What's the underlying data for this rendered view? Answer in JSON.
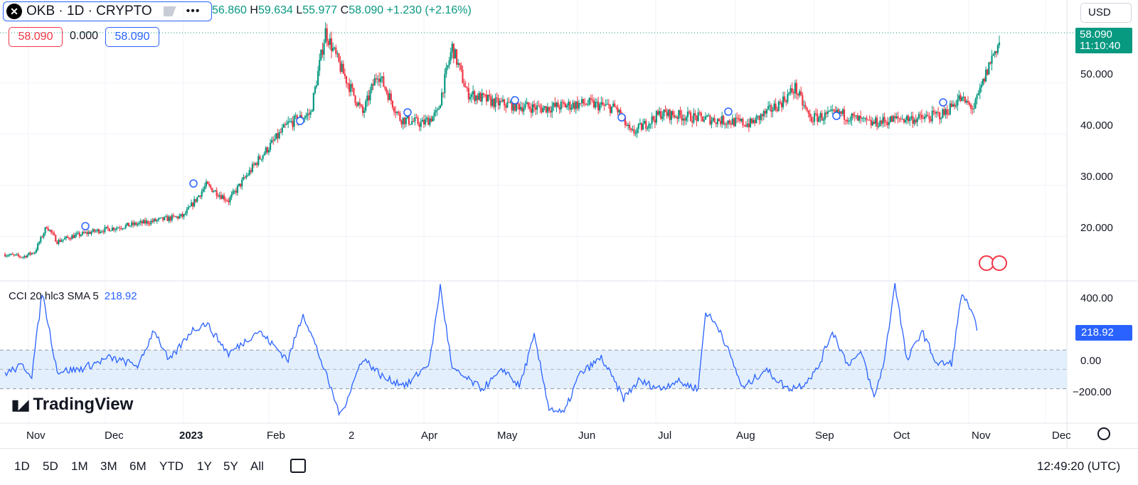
{
  "symbol": {
    "name": "OKB · 1D · CRYPTO",
    "logo": "okb-logo-icon"
  },
  "ohlc": {
    "o": "56.860",
    "h": "59.634",
    "l": "55.977",
    "c": "58.090",
    "change": "+1.230 (+2.16%)",
    "o_label": "",
    "h_label": "H",
    "l_label": "L",
    "c_label": "C"
  },
  "order_tags": {
    "sell": "58.090",
    "spread": "0.000",
    "buy": "58.090"
  },
  "currency": "USD",
  "price_tag": {
    "price": "58.090",
    "countdown": "11:10:40"
  },
  "y_axis_main": [
    "50.000",
    "40.000",
    "30.000",
    "20.000"
  ],
  "y_axis_cci": [
    "400.00",
    "0.00",
    "−200.00"
  ],
  "cci": {
    "legend": "CCI 20 hlc3 SMA 5",
    "value": "218.92"
  },
  "brand": "TradingView",
  "x_axis": [
    "Nov",
    "Dec",
    "2023",
    "Feb",
    "2",
    "Apr",
    "May",
    "Jun",
    "Jul",
    "Aug",
    "Sep",
    "Oct",
    "Nov",
    "Dec"
  ],
  "ranges": [
    "1D",
    "5D",
    "1M",
    "3M",
    "6M",
    "YTD",
    "1Y",
    "5Y",
    "All"
  ],
  "clock": "12:49:20 (UTC)",
  "colors": {
    "up": "#089981",
    "down": "#f23645",
    "cci": "#2962ff",
    "band": "#e3effd"
  },
  "chart_data": {
    "type": "candlestick",
    "price_range": [
      12,
      62
    ],
    "cci_range": [
      -260,
      440
    ],
    "cci_band": [
      -100,
      100
    ],
    "anchors": [
      [
        0,
        16.5
      ],
      [
        12,
        16
      ],
      [
        20,
        17
      ],
      [
        28,
        22
      ],
      [
        35,
        19
      ],
      [
        45,
        20
      ],
      [
        60,
        21
      ],
      [
        80,
        22
      ],
      [
        100,
        23
      ],
      [
        120,
        24
      ],
      [
        135,
        30
      ],
      [
        150,
        27
      ],
      [
        170,
        35
      ],
      [
        190,
        42
      ],
      [
        205,
        44
      ],
      [
        215,
        60
      ],
      [
        225,
        53
      ],
      [
        240,
        44
      ],
      [
        250,
        52
      ],
      [
        265,
        43
      ],
      [
        280,
        42
      ],
      [
        290,
        44
      ],
      [
        300,
        57
      ],
      [
        310,
        48
      ],
      [
        330,
        46
      ],
      [
        360,
        45
      ],
      [
        390,
        46
      ],
      [
        410,
        45
      ],
      [
        420,
        40
      ],
      [
        440,
        44
      ],
      [
        470,
        43
      ],
      [
        500,
        42
      ],
      [
        520,
        46
      ],
      [
        530,
        49
      ],
      [
        540,
        43
      ],
      [
        560,
        44
      ],
      [
        580,
        42
      ],
      [
        600,
        43
      ],
      [
        615,
        43
      ],
      [
        630,
        44
      ],
      [
        640,
        47
      ],
      [
        650,
        45
      ],
      [
        662,
        55
      ],
      [
        667,
        58
      ]
    ],
    "cci_anchors": [
      [
        0,
        -20
      ],
      [
        12,
        20
      ],
      [
        18,
        -30
      ],
      [
        25,
        400
      ],
      [
        35,
        -10
      ],
      [
        50,
        0
      ],
      [
        70,
        60
      ],
      [
        90,
        20
      ],
      [
        100,
        210
      ],
      [
        110,
        40
      ],
      [
        125,
        200
      ],
      [
        135,
        240
      ],
      [
        150,
        80
      ],
      [
        170,
        200
      ],
      [
        190,
        50
      ],
      [
        200,
        290
      ],
      [
        210,
        90
      ],
      [
        225,
        -240
      ],
      [
        240,
        60
      ],
      [
        255,
        -50
      ],
      [
        270,
        -80
      ],
      [
        285,
        40
      ],
      [
        292,
        430
      ],
      [
        300,
        0
      ],
      [
        320,
        -100
      ],
      [
        335,
        0
      ],
      [
        345,
        -90
      ],
      [
        355,
        170
      ],
      [
        365,
        -200
      ],
      [
        375,
        -230
      ],
      [
        385,
        -30
      ],
      [
        400,
        60
      ],
      [
        415,
        -150
      ],
      [
        425,
        -60
      ],
      [
        440,
        -100
      ],
      [
        450,
        -60
      ],
      [
        465,
        -100
      ],
      [
        470,
        300
      ],
      [
        480,
        200
      ],
      [
        495,
        -100
      ],
      [
        510,
        0
      ],
      [
        525,
        -100
      ],
      [
        535,
        -80
      ],
      [
        545,
        0
      ],
      [
        555,
        200
      ],
      [
        565,
        30
      ],
      [
        575,
        80
      ],
      [
        583,
        -150
      ],
      [
        590,
        50
      ],
      [
        597,
        450
      ],
      [
        605,
        40
      ],
      [
        615,
        200
      ],
      [
        625,
        30
      ],
      [
        635,
        30
      ],
      [
        642,
        400
      ],
      [
        652,
        220
      ]
    ]
  }
}
